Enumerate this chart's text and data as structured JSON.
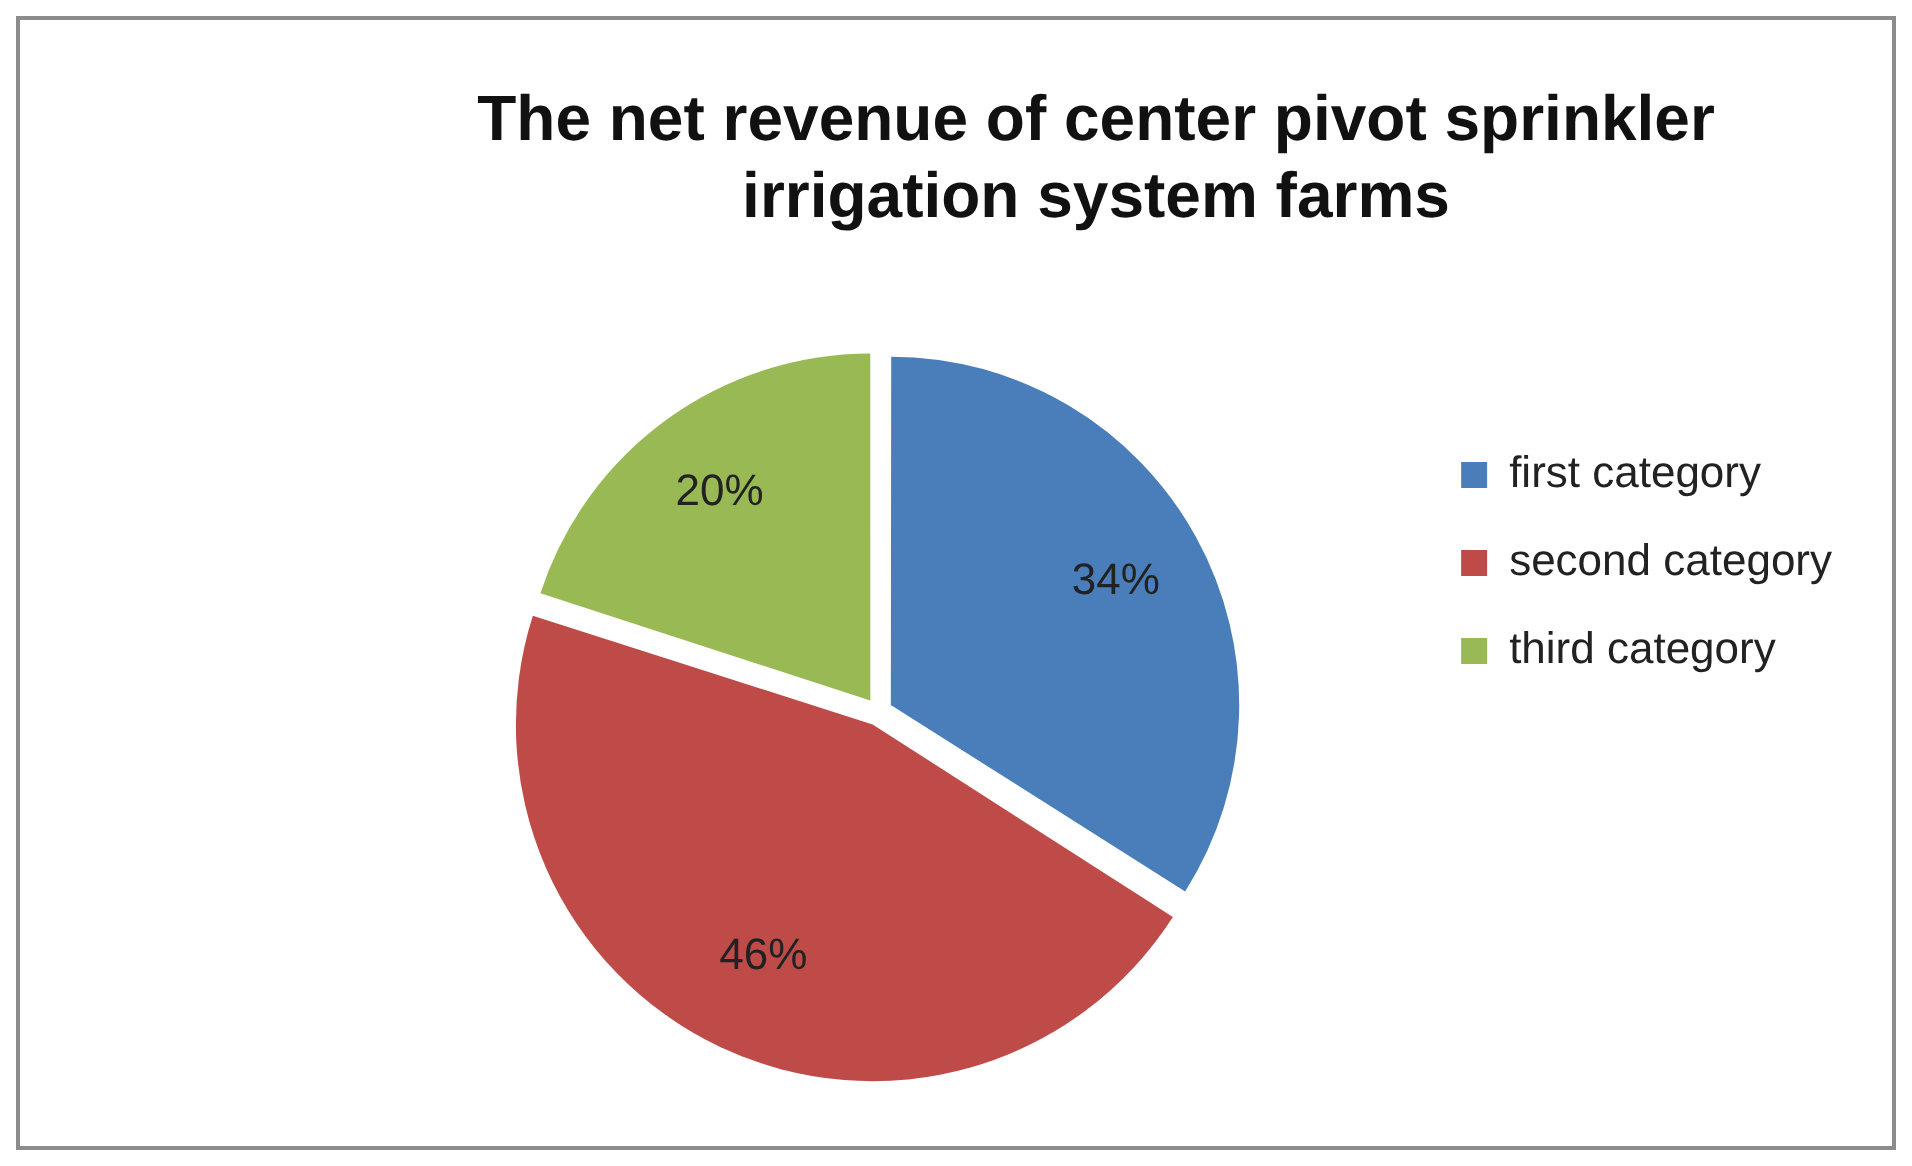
{
  "chart_data": {
    "type": "pie",
    "title": "The net revenue of center pivot sprinkler irrigation system farms",
    "categories": [
      "first category",
      "second category",
      "third category"
    ],
    "values": [
      34,
      46,
      20
    ],
    "value_labels": [
      "34%",
      "46%",
      "20%"
    ],
    "colors": [
      "#4a7ebb",
      "#be4b48",
      "#98b954"
    ],
    "legend": "right"
  }
}
